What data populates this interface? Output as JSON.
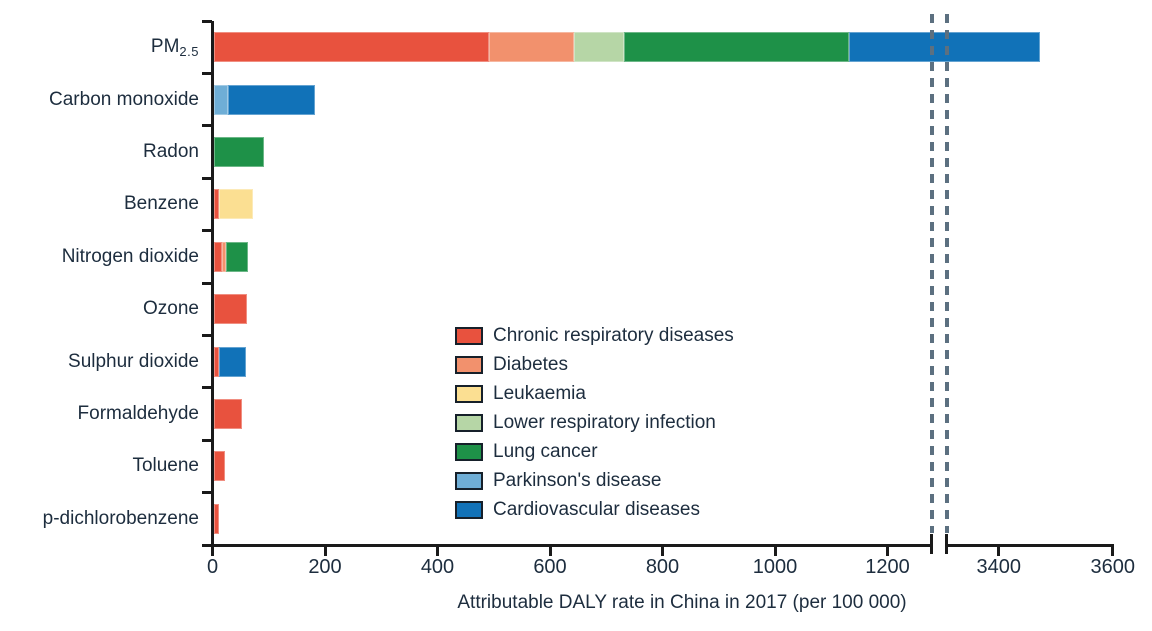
{
  "chart_data": {
    "type": "bar",
    "orientation": "horizontal",
    "stacked": true,
    "title": "",
    "xlabel": "Attributable DALY rate in China in 2017 (per 100 000)",
    "ylabel": "",
    "x_axis": {
      "ticks_before_break": [
        0,
        200,
        400,
        600,
        800,
        1000,
        1200
      ],
      "ticks_after_break": [
        3400,
        3600
      ],
      "break_between": [
        1280,
        3310
      ],
      "range": [
        0,
        3600
      ],
      "grid": false
    },
    "legend": {
      "position": "inside-center-bottom",
      "entries": [
        {
          "name": "Chronic respiratory diseases",
          "color": "#E8523E"
        },
        {
          "name": "Diabetes",
          "color": "#F2916D"
        },
        {
          "name": "Leukaemia",
          "color": "#FBDF92"
        },
        {
          "name": "Lower respiratory infection",
          "color": "#B6D6A6"
        },
        {
          "name": "Lung cancer",
          "color": "#1E9148"
        },
        {
          "name": "Parkinson's disease",
          "color": "#6FAED6"
        },
        {
          "name": "Cardiovascular diseases",
          "color": "#1172B8"
        }
      ]
    },
    "categories": [
      {
        "label_main": "PM",
        "label_sub": "2.5",
        "label": "PM2.5",
        "segments": [
          {
            "cause": "Chronic respiratory diseases",
            "value": 490
          },
          {
            "cause": "Diabetes",
            "value": 150
          },
          {
            "cause": "Lower respiratory infection",
            "value": 90
          },
          {
            "cause": "Lung cancer",
            "value": 400
          },
          {
            "cause": "Cardiovascular diseases",
            "value": 2340
          }
        ]
      },
      {
        "label": "Carbon monoxide",
        "segments": [
          {
            "cause": "Parkinson's disease",
            "value": 25
          },
          {
            "cause": "Cardiovascular diseases",
            "value": 155
          }
        ]
      },
      {
        "label": "Radon",
        "segments": [
          {
            "cause": "Lung cancer",
            "value": 90
          }
        ]
      },
      {
        "label": "Benzene",
        "segments": [
          {
            "cause": "Chronic respiratory diseases",
            "value": 10
          },
          {
            "cause": "Leukaemia",
            "value": 60
          }
        ]
      },
      {
        "label": "Nitrogen dioxide",
        "segments": [
          {
            "cause": "Chronic respiratory diseases",
            "value": 15
          },
          {
            "cause": "Diabetes",
            "value": 7
          },
          {
            "cause": "Lung cancer",
            "value": 40
          }
        ]
      },
      {
        "label": "Ozone",
        "segments": [
          {
            "cause": "Chronic respiratory diseases",
            "value": 60
          }
        ]
      },
      {
        "label": "Sulphur dioxide",
        "segments": [
          {
            "cause": "Chronic respiratory diseases",
            "value": 10
          },
          {
            "cause": "Cardiovascular diseases",
            "value": 48
          }
        ]
      },
      {
        "label": "Formaldehyde",
        "segments": [
          {
            "cause": "Chronic respiratory diseases",
            "value": 50
          }
        ]
      },
      {
        "label": "Toluene",
        "segments": [
          {
            "cause": "Chronic respiratory diseases",
            "value": 20
          }
        ]
      },
      {
        "label": "p-dichlorobenzene",
        "segments": [
          {
            "cause": "Chronic respiratory diseases",
            "value": 10
          }
        ]
      }
    ],
    "styles": {
      "text_color": "#1D2D3E",
      "axis_color": "#1A1A1A",
      "break_dash_color": "#5C7080"
    }
  }
}
